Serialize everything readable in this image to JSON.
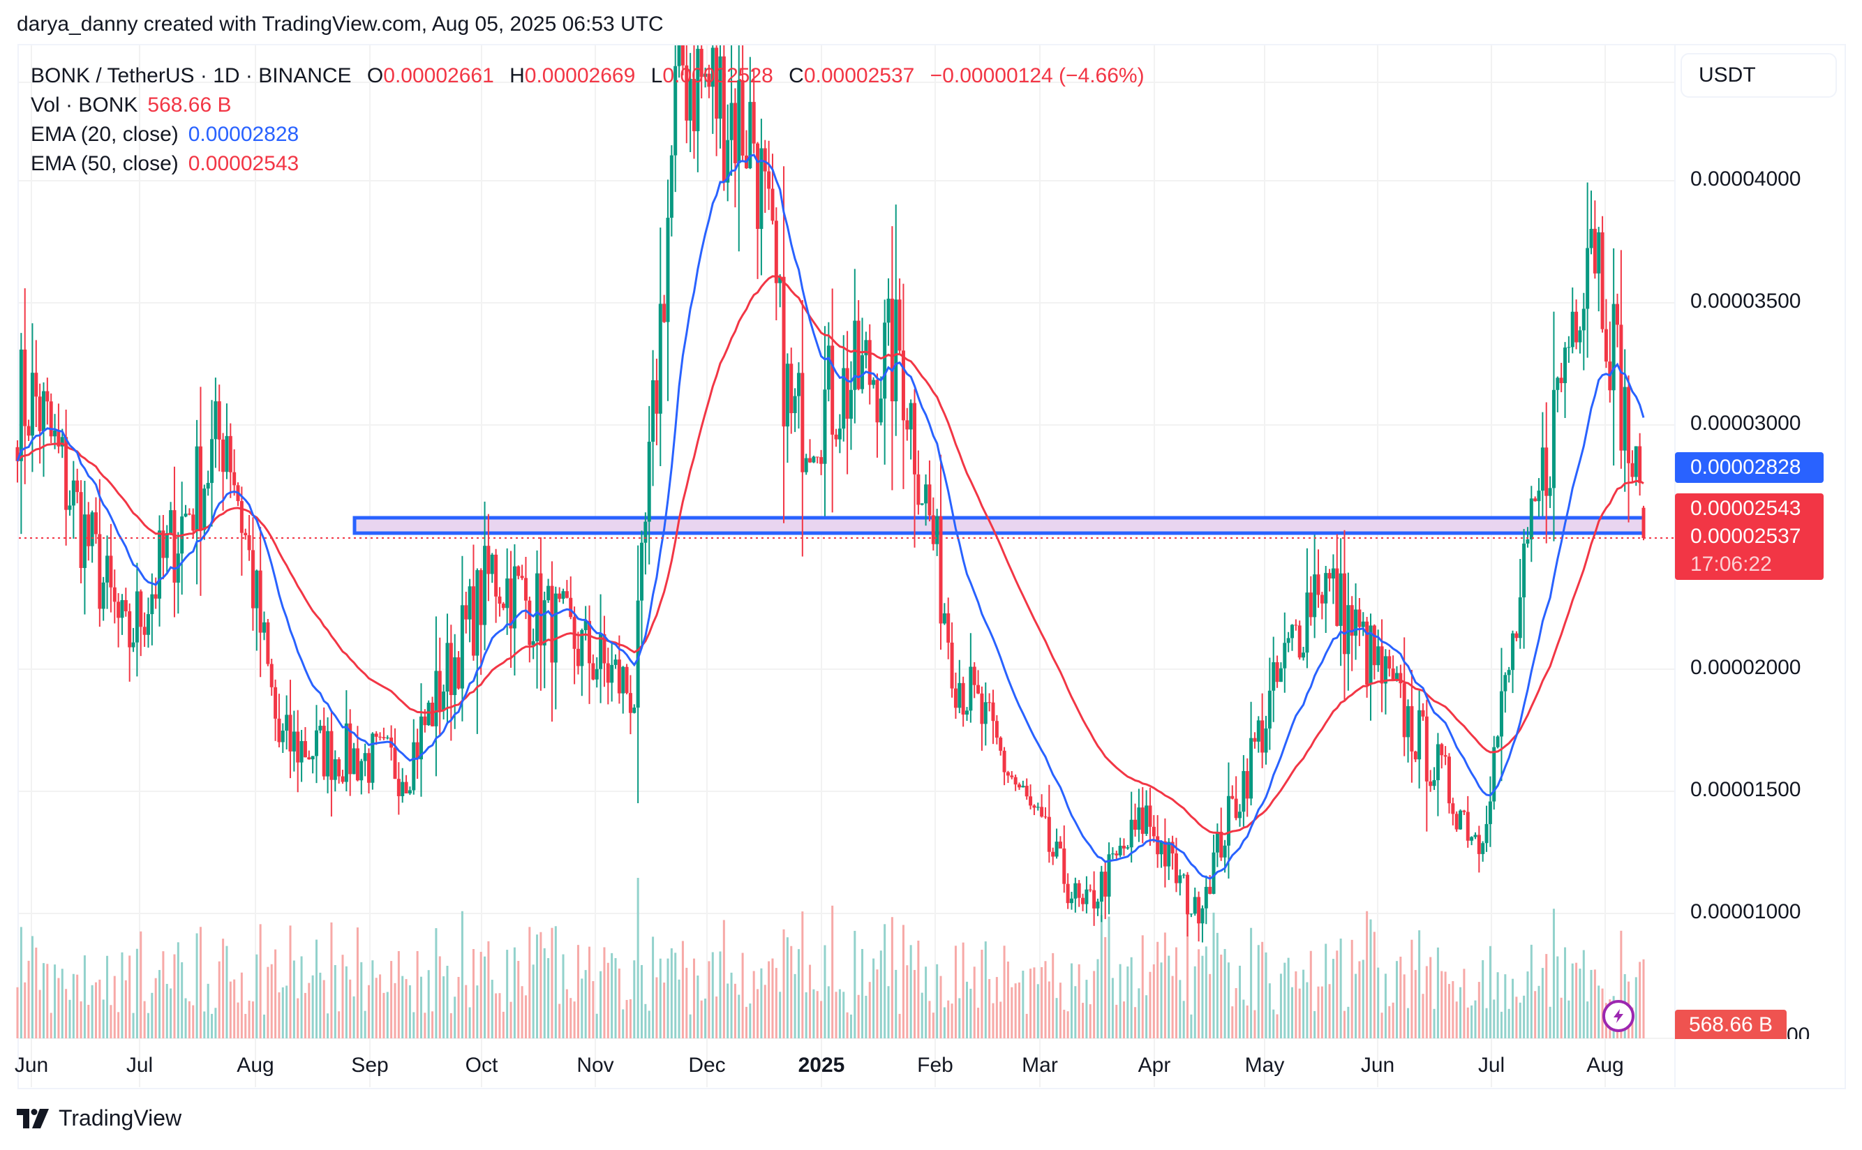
{
  "attribution": "darya_danny created with TradingView.com, Aug 05, 2025 06:53 UTC",
  "legend": {
    "symbol": "BONK / TetherUS · 1D · BINANCE",
    "o_label": "O",
    "o": "0.00002661",
    "h_label": "H",
    "h": "0.00002669",
    "l_label": "L",
    "l": "0.00002528",
    "c_label": "C",
    "c": "0.00002537",
    "change": "−0.00000124 (−4.66%)",
    "vol_label": "Vol · BONK",
    "vol": "568.66 B",
    "ema20_label": "EMA (20, close)",
    "ema20": "0.00002828",
    "ema50_label": "EMA (50, close)",
    "ema50": "0.00002543"
  },
  "price_axis": {
    "currency_button": "USDT",
    "ticks": [
      "0.00004000",
      "0.00003500",
      "0.00003000",
      "0.00002000",
      "0.00001500",
      "0.00001000"
    ],
    "ema20_tag": "0.00002828",
    "ema50_tag": "0.00002543",
    "last_price_tag": "0.00002537",
    "countdown": "17:06:22",
    "volume_tag": "568.66 B",
    "volume_axis_partial": "00"
  },
  "time_axis": {
    "labels": [
      "Jun",
      "Jul",
      "Aug",
      "Sep",
      "Oct",
      "Nov",
      "Dec",
      "2025",
      "Feb",
      "Mar",
      "Apr",
      "May",
      "Jun",
      "Jul",
      "Aug"
    ]
  },
  "footer": {
    "logo_text": "TradingView"
  },
  "colors": {
    "up": "#089981",
    "down": "#f23645",
    "ema20": "#2962ff",
    "ema50": "#f23645",
    "vol_up": "#92d2cc",
    "vol_down": "#f7a9a7",
    "zone_border": "#2962ff",
    "zone_fill": "#e9d5f0"
  },
  "chart_data": {
    "type": "candlestick",
    "title": "BONK / TetherUS · 1D · BINANCE",
    "xlabel": "",
    "ylabel": "USDT",
    "ylim": [
      5e-06,
      4.6e-05
    ],
    "yticks": [
      1e-05,
      1.5e-05,
      2e-05,
      3e-05,
      3.5e-05,
      4e-05
    ],
    "x_ticks": [
      "Jun",
      "Jul",
      "Aug",
      "Sep",
      "Oct",
      "Nov",
      "Dec",
      "2025",
      "Feb",
      "Mar",
      "Apr",
      "May",
      "Jun",
      "Jul",
      "Aug"
    ],
    "grid": true,
    "last": {
      "open": 2.661e-05,
      "high": 2.669e-05,
      "low": 2.528e-05,
      "close": 2.537e-05,
      "change": -1.24e-06,
      "change_pct": -4.66,
      "volume": "568.66B"
    },
    "indicators": [
      {
        "name": "EMA (20, close)",
        "last": 2.828e-05,
        "color": "#2962ff"
      },
      {
        "name": "EMA (50, close)",
        "last": 2.543e-05,
        "color": "#f23645"
      }
    ],
    "support_zone": {
      "from": "2024-09-01",
      "to": "2025-08-10",
      "top": 2.62e-05,
      "bottom": 2.55e-05
    },
    "close_path_monthly": {
      "x": [
        "2024-06",
        "2024-07",
        "2024-08",
        "2024-09",
        "2024-10",
        "2024-11",
        "2024-12",
        "2025-01",
        "2025-02",
        "2025-03",
        "2025-04",
        "2025-05",
        "2025-06",
        "2025-07",
        "2025-08"
      ],
      "approx_close": [
        3.1e-05,
        2.3e-05,
        2e-05,
        1.65e-05,
        2.15e-05,
        4e-05,
        3.5e-05,
        3e-05,
        1.75e-05,
        1.1e-05,
        1.2e-05,
        2.2e-05,
        1.5e-05,
        3.3e-05,
        2.54e-05
      ]
    },
    "key_points": [
      {
        "date": "2024-06-01",
        "price": 3.1e-05
      },
      {
        "date": "2024-06-25",
        "price": 2.1e-05
      },
      {
        "date": "2024-07-22",
        "price": 3e-05
      },
      {
        "date": "2024-08-05",
        "price": 1.7e-05
      },
      {
        "date": "2024-09-08",
        "price": 1.6e-05
      },
      {
        "date": "2024-10-01",
        "price": 2.4e-05
      },
      {
        "date": "2024-11-08",
        "price": 1.9e-05
      },
      {
        "date": "2024-11-20",
        "price": 4.5e-05
      },
      {
        "date": "2024-12-10",
        "price": 4.2e-05
      },
      {
        "date": "2024-12-20",
        "price": 3e-05
      },
      {
        "date": "2025-01-18",
        "price": 3.3e-05
      },
      {
        "date": "2025-02-02",
        "price": 2e-05
      },
      {
        "date": "2025-03-08",
        "price": 1e-05
      },
      {
        "date": "2025-03-25",
        "price": 1.4e-05
      },
      {
        "date": "2025-04-07",
        "price": 1e-05
      },
      {
        "date": "2025-05-10",
        "price": 2.4e-05
      },
      {
        "date": "2025-06-22",
        "price": 1.3e-05
      },
      {
        "date": "2025-07-22",
        "price": 3.9e-05
      },
      {
        "date": "2025-08-05",
        "price": 2.54e-05
      }
    ]
  }
}
